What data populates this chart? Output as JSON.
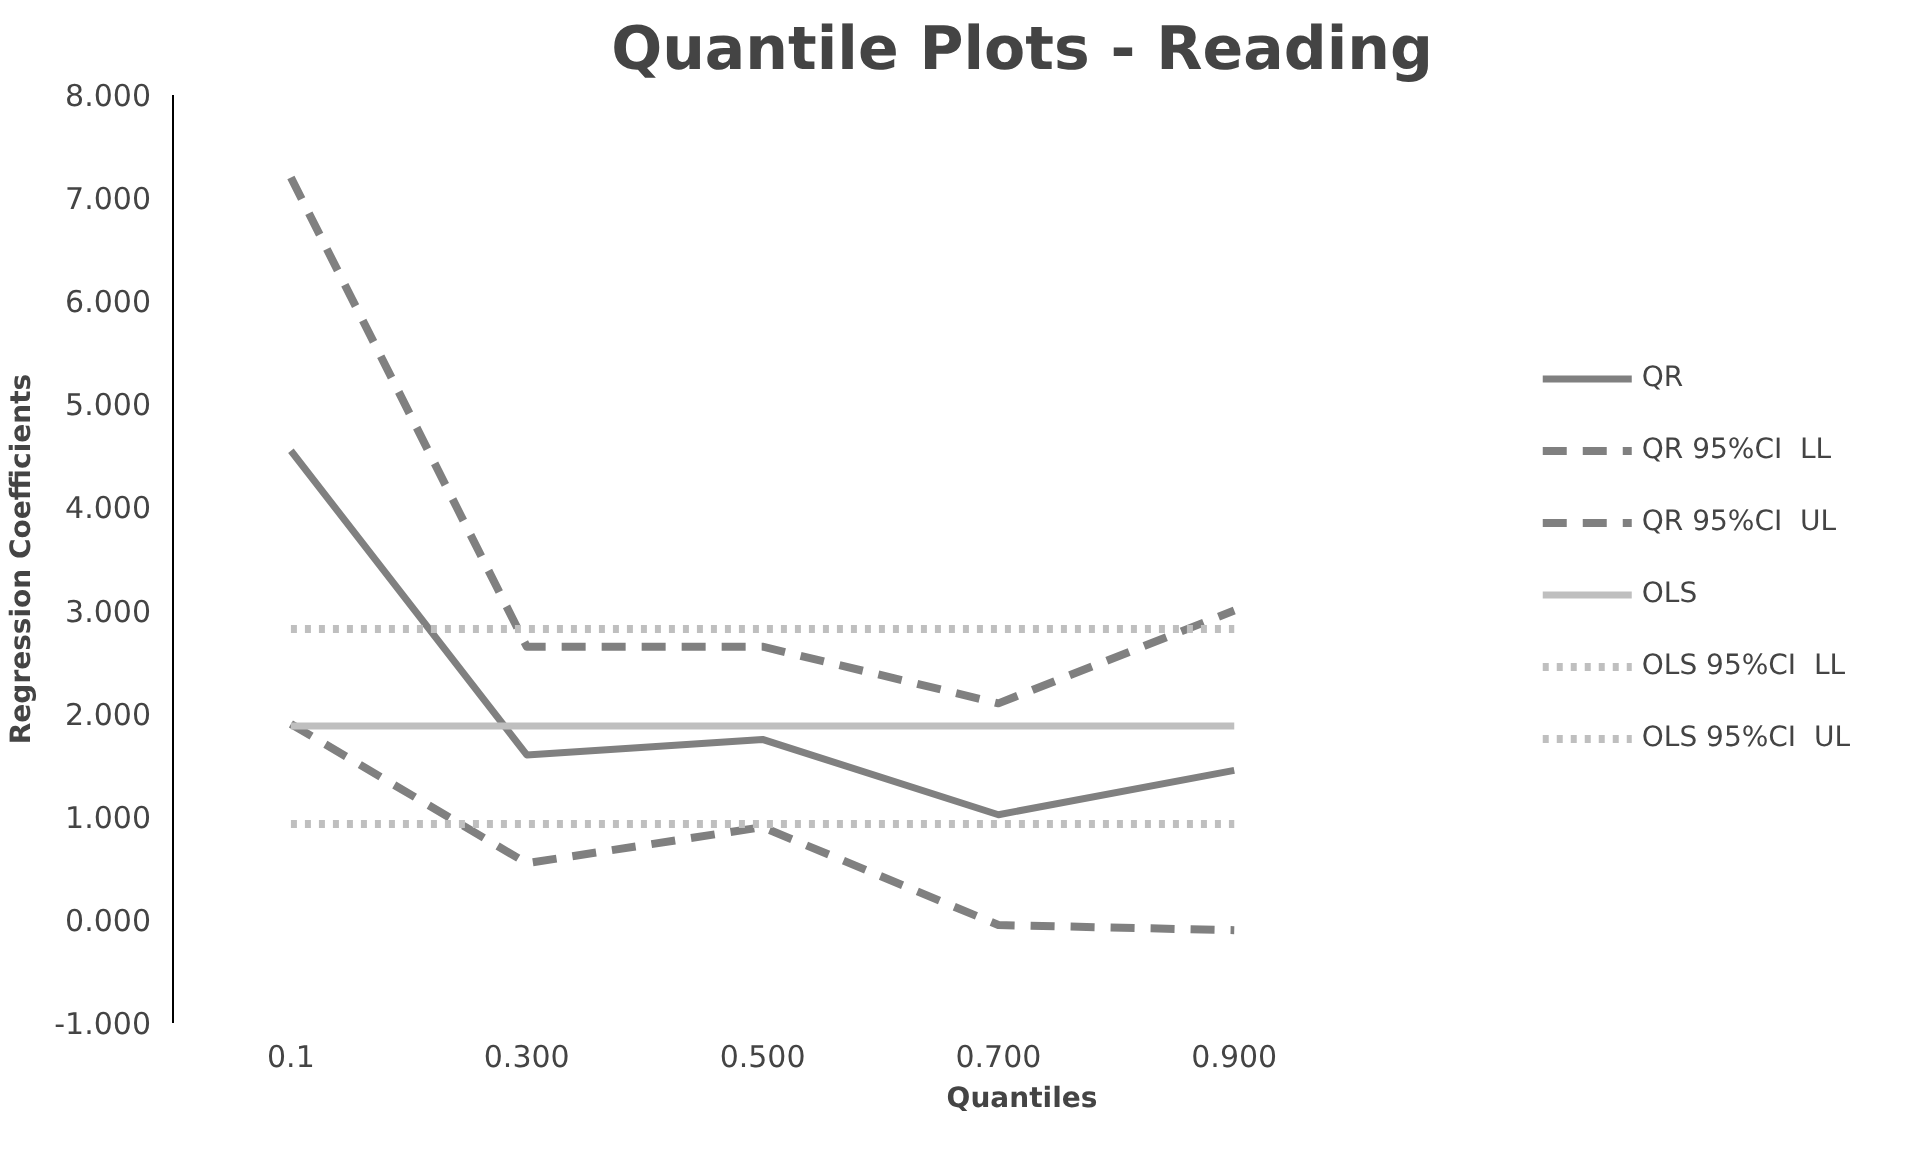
{
  "chart_data": {
    "type": "line",
    "title": "Quantile Plots - Reading",
    "xlabel": "Quantiles",
    "ylabel": "Regression Coefficients",
    "categories": [
      "0.1",
      "0.300",
      "0.500",
      "0.700",
      "0.900"
    ],
    "series": [
      {
        "name": "QR",
        "color": "#808080",
        "line_style": "solid",
        "values": [
          4.55,
          1.6,
          1.75,
          1.02,
          1.45
        ]
      },
      {
        "name": "QR 95%CI  LL",
        "color": "#808080",
        "line_style": "dashed",
        "values": [
          1.9,
          0.55,
          0.9,
          -0.05,
          -0.1
        ]
      },
      {
        "name": "QR 95%CI  UL",
        "color": "#808080",
        "line_style": "dashed",
        "values": [
          7.2,
          2.65,
          2.65,
          2.1,
          3.0
        ]
      },
      {
        "name": "OLS",
        "color": "#bfbfbf",
        "line_style": "solid",
        "values": [
          1.88,
          1.88,
          1.88,
          1.88,
          1.88
        ]
      },
      {
        "name": "OLS 95%CI  LL",
        "color": "#bfbfbf",
        "line_style": "dotted",
        "values": [
          0.93,
          0.93,
          0.93,
          0.93,
          0.93
        ]
      },
      {
        "name": "OLS 95%CI  UL",
        "color": "#bfbfbf",
        "line_style": "dotted",
        "values": [
          2.82,
          2.82,
          2.82,
          2.82,
          2.82
        ]
      }
    ],
    "ylim": [
      -1,
      8
    ],
    "yticks": [
      {
        "value": -1,
        "label": "-1.000"
      },
      {
        "value": 0,
        "label": "0.000"
      },
      {
        "value": 1,
        "label": "1.000"
      },
      {
        "value": 2,
        "label": "2.000"
      },
      {
        "value": 3,
        "label": "3.000"
      },
      {
        "value": 4,
        "label": "4.000"
      },
      {
        "value": 5,
        "label": "5.000"
      },
      {
        "value": 6,
        "label": "6.000"
      },
      {
        "value": 7,
        "label": "7.000"
      },
      {
        "value": 8,
        "label": "8.000"
      }
    ],
    "grid": false,
    "legend": "right",
    "marker": "none"
  }
}
